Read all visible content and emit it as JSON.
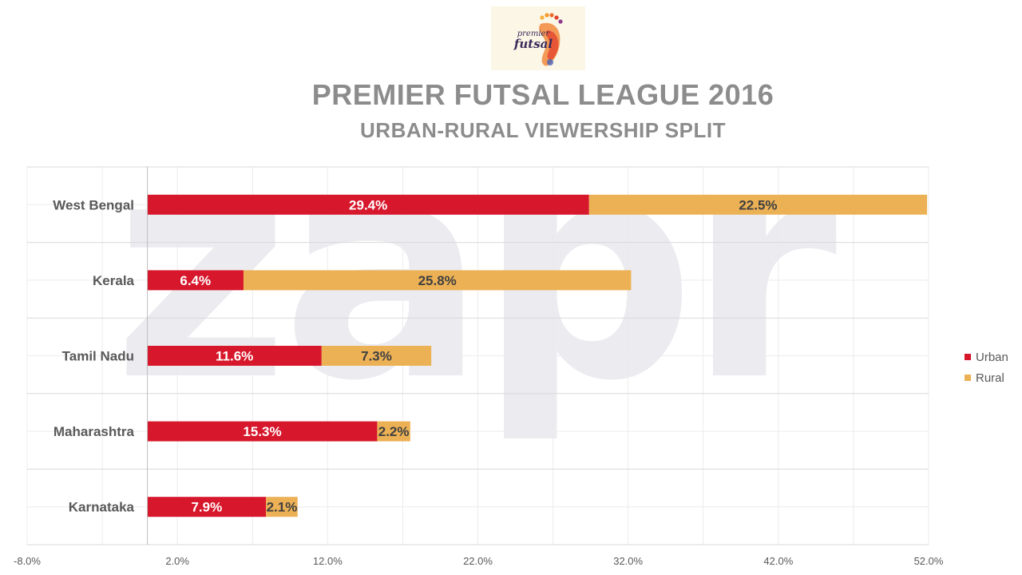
{
  "header": {
    "logo_line1": "premier",
    "logo_line2": "futsal",
    "title": "PREMIER FUTSAL LEAGUE 2016",
    "subtitle": "URBAN-RURAL VIEWERSHIP SPLIT"
  },
  "watermark": "zapr",
  "colors": {
    "urban": "#d7172b",
    "rural": "#ecb155",
    "axis_text": "#595959",
    "grid": "#d9d9d9"
  },
  "chart_data": {
    "type": "bar",
    "orientation": "horizontal",
    "stacked": true,
    "categories": [
      "West Bengal",
      "Kerala",
      "Tamil Nadu",
      "Maharashtra",
      "Karnataka"
    ],
    "series": [
      {
        "name": "Urban",
        "values": [
          29.4,
          6.4,
          11.6,
          15.3,
          7.9
        ],
        "labels": [
          "29.4%",
          "6.4%",
          "11.6%",
          "15.3%",
          "7.9%"
        ]
      },
      {
        "name": "Rural",
        "values": [
          22.5,
          25.8,
          7.3,
          2.2,
          2.1
        ],
        "labels": [
          "22.5%",
          "25.8%",
          "7.3%",
          "2.2%",
          "2.1%"
        ]
      }
    ],
    "xlim": [
      -8,
      52
    ],
    "xticks": [
      -8,
      2,
      12,
      22,
      32,
      42,
      52
    ],
    "xtick_labels": [
      "-8.0%",
      "2.0%",
      "12.0%",
      "22.0%",
      "32.0%",
      "42.0%",
      "52.0%"
    ],
    "grid": true,
    "legend_position": "right"
  }
}
